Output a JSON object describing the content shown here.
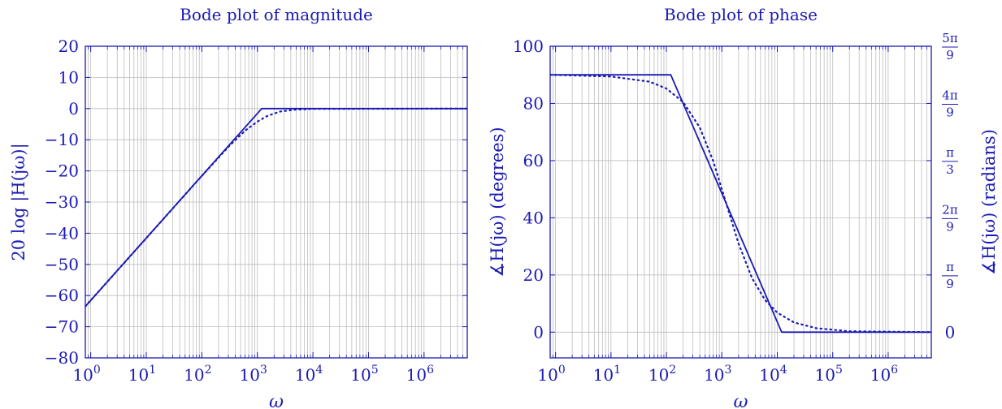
{
  "colors": {
    "series": "#1a1ab3",
    "axis": "#1a1ab3",
    "grid": "#bdbdbd",
    "text": "#1a1ab3"
  },
  "chart_data": [
    {
      "type": "line",
      "title": "Bode plot of magnitude",
      "xlabel": "ω",
      "ylabel": "20 log |H(jω)|",
      "xscale": "log",
      "xlim": [
        0.8,
        6000000
      ],
      "ylim": [
        -80,
        20
      ],
      "xticks": [
        1,
        10,
        100,
        1000,
        10000,
        100000,
        1000000
      ],
      "xtick_labels": [
        {
          "base": "10",
          "exp": "0"
        },
        {
          "base": "10",
          "exp": "1"
        },
        {
          "base": "10",
          "exp": "2"
        },
        {
          "base": "10",
          "exp": "3"
        },
        {
          "base": "10",
          "exp": "4"
        },
        {
          "base": "10",
          "exp": "5"
        },
        {
          "base": "10",
          "exp": "6"
        }
      ],
      "yticks": [
        -80,
        -70,
        -60,
        -50,
        -40,
        -30,
        -20,
        -10,
        0,
        10,
        20
      ],
      "ytick_labels": [
        "−80",
        "−70",
        "−60",
        "−50",
        "−40",
        "−30",
        "−20",
        "−10",
        "0",
        "10",
        "20"
      ],
      "grid": true,
      "series": [
        {
          "style": "solid",
          "x": [
            0.8,
            1200,
            6000000
          ],
          "y": [
            -63.5,
            0,
            0
          ]
        },
        {
          "style": "dotted",
          "x": [
            0.8,
            100,
            300,
            600,
            1000,
            1500,
            2500,
            5000,
            10000,
            6000000
          ],
          "y": [
            -63.5,
            -21.6,
            -12.3,
            -7.1,
            -4.2,
            -2.4,
            -1.0,
            -0.3,
            -0.1,
            0
          ]
        }
      ]
    },
    {
      "type": "line",
      "title": "Bode plot of phase",
      "xlabel": "ω",
      "ylabel": "∡H(jω) (degrees)",
      "ylabel_right": "∡H(jω) (radians)",
      "xscale": "log",
      "xlim": [
        0.8,
        6000000
      ],
      "ylim": [
        -9,
        100
      ],
      "xticks": [
        1,
        10,
        100,
        1000,
        10000,
        100000,
        1000000
      ],
      "xtick_labels": [
        {
          "base": "10",
          "exp": "0"
        },
        {
          "base": "10",
          "exp": "1"
        },
        {
          "base": "10",
          "exp": "2"
        },
        {
          "base": "10",
          "exp": "3"
        },
        {
          "base": "10",
          "exp": "4"
        },
        {
          "base": "10",
          "exp": "5"
        },
        {
          "base": "10",
          "exp": "6"
        }
      ],
      "yticks": [
        0,
        20,
        40,
        60,
        80,
        100
      ],
      "ytick_labels": [
        "0",
        "20",
        "40",
        "60",
        "80",
        "100"
      ],
      "right_yticks": [
        0,
        20,
        40,
        60,
        80,
        100
      ],
      "right_ytick_labels": [
        {
          "num": "",
          "den": "",
          "plain": "0"
        },
        {
          "num": "π",
          "den": "9",
          "plain": ""
        },
        {
          "num": "2π",
          "den": "9",
          "plain": ""
        },
        {
          "num": "π",
          "den": "3",
          "plain": ""
        },
        {
          "num": "4π",
          "den": "9",
          "plain": ""
        },
        {
          "num": "5π",
          "den": "9",
          "plain": ""
        }
      ],
      "grid": true,
      "series": [
        {
          "style": "solid",
          "x": [
            0.8,
            120,
            12000,
            6000000
          ],
          "y": [
            90,
            90,
            0,
            0
          ]
        },
        {
          "style": "dotted",
          "x": [
            0.8,
            10,
            50,
            100,
            200,
            400,
            700,
            1200,
            2000,
            3500,
            6000,
            10000,
            20000,
            50000,
            200000,
            6000000
          ],
          "y": [
            90,
            89.4,
            87.6,
            85.2,
            80.5,
            71.6,
            59.8,
            45.0,
            31.0,
            18.9,
            11.3,
            6.8,
            3.4,
            1.4,
            0.3,
            0
          ]
        }
      ]
    }
  ]
}
